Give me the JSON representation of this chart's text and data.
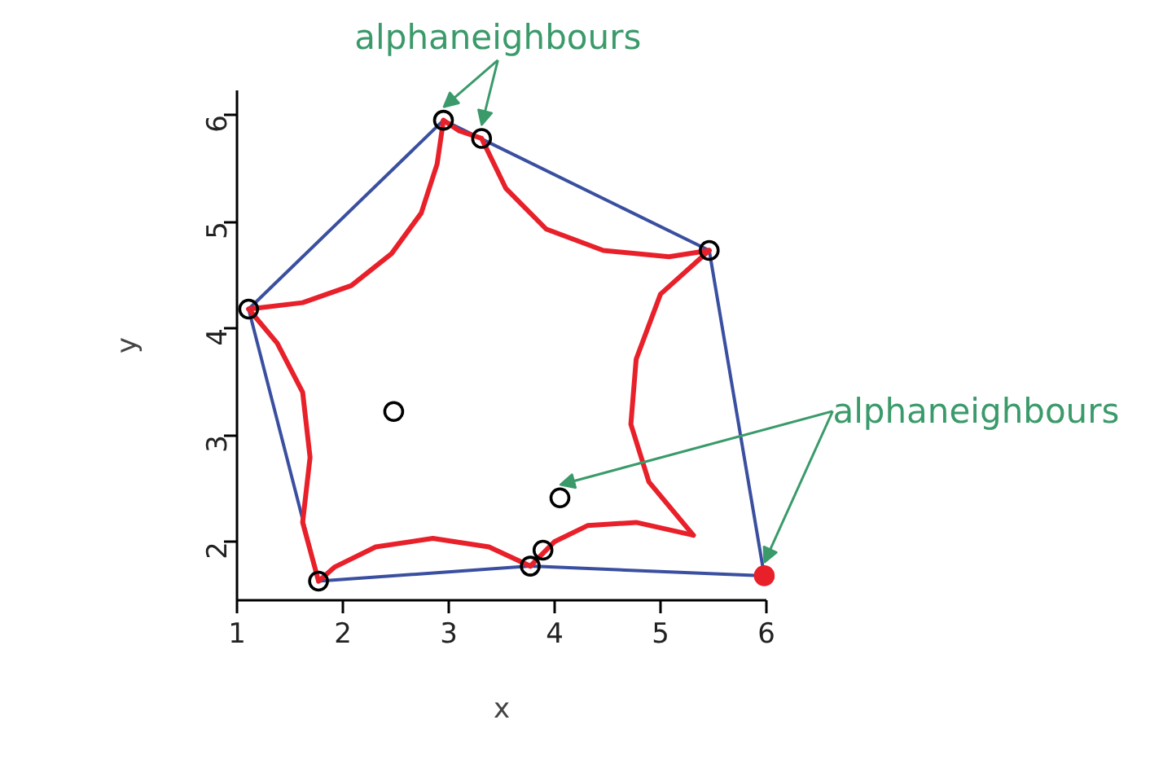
{
  "chart_data": {
    "type": "line",
    "xlabel": "x",
    "ylabel": "y",
    "xlim": [
      1,
      6
    ],
    "ylim": [
      1.45,
      6.23
    ],
    "xticks": [
      1,
      2,
      3,
      4,
      5,
      6
    ],
    "yticks": [
      2,
      3,
      4,
      5,
      6
    ],
    "series": [
      {
        "color": "#3a4fa0",
        "x": [
          1.11,
          2.95,
          5.46,
          5.98
        ],
        "values": [
          4.18,
          5.95,
          4.73,
          1.68
        ]
      },
      {
        "color": "#3a4fa0",
        "x": [
          5.98,
          3.77,
          1.77,
          1.11
        ],
        "values": [
          1.68,
          1.77,
          1.63,
          4.18
        ]
      },
      {
        "color": "#e8202a",
        "x": [
          1.11,
          1.62,
          2.08,
          2.46,
          2.74,
          2.89,
          2.95
        ],
        "values": [
          4.18,
          4.24,
          4.4,
          4.7,
          5.08,
          5.54,
          5.95
        ]
      },
      {
        "color": "#e8202a",
        "x": [
          2.95,
          3.1,
          3.31,
          3.54,
          3.92,
          4.46,
          5.08,
          5.46
        ],
        "values": [
          5.95,
          5.85,
          5.78,
          5.31,
          4.93,
          4.73,
          4.67,
          4.73
        ]
      },
      {
        "color": "#e8202a",
        "x": [
          5.46,
          5.0,
          4.77,
          4.72,
          4.89,
          5.31
        ],
        "values": [
          4.73,
          4.32,
          3.71,
          3.1,
          2.56,
          2.06
        ]
      },
      {
        "color": "#e8202a",
        "x": [
          5.31,
          4.77,
          4.31,
          4.0,
          3.77
        ],
        "values": [
          2.06,
          2.18,
          2.15,
          2.0,
          1.77
        ]
      },
      {
        "color": "#e8202a",
        "x": [
          3.77,
          3.38,
          2.85,
          2.31,
          1.92,
          1.77
        ],
        "values": [
          1.77,
          1.95,
          2.03,
          1.95,
          1.76,
          1.63
        ]
      },
      {
        "color": "#e8202a",
        "x": [
          1.77,
          1.62,
          1.69,
          1.62,
          1.38,
          1.11
        ],
        "values": [
          1.63,
          2.18,
          2.79,
          3.4,
          3.86,
          4.18
        ]
      },
      {
        "type": "scatter",
        "color": "#000000",
        "marker": "circle",
        "x": [
          2.95,
          3.31,
          5.46,
          1.11,
          2.48,
          4.05,
          3.89,
          3.77,
          1.77
        ],
        "values": [
          5.95,
          5.78,
          4.73,
          4.18,
          3.22,
          2.41,
          1.92,
          1.77,
          1.63
        ]
      },
      {
        "type": "scatter",
        "color": "#e8202a",
        "x": [
          5.98
        ],
        "values": [
          1.68
        ]
      }
    ],
    "annotations": [
      {
        "text": "alphaneighbours",
        "x": 3.31,
        "y": 5.78
      },
      {
        "text": "alphaneighbours",
        "x": 5.98,
        "y": 1.68
      }
    ]
  }
}
